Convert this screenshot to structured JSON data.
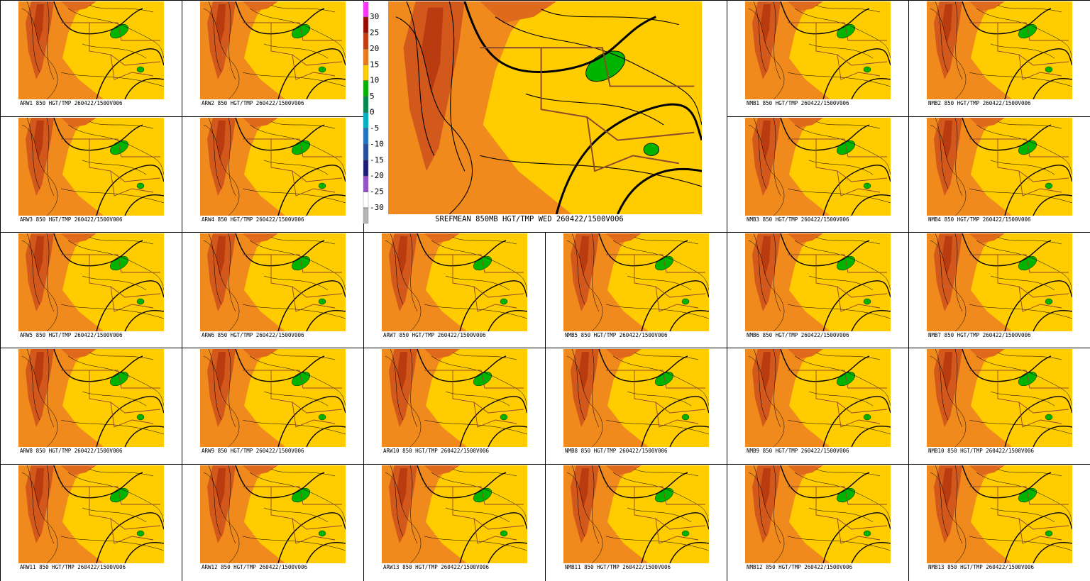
{
  "main_panel": {
    "title": "SREFMEAN 850MB HGT/TMP WED 260422/1500V006"
  },
  "colorbar": {
    "ticks": [
      30,
      25,
      20,
      15,
      10,
      5,
      0,
      -5,
      -10,
      -15,
      -20,
      -25,
      -30
    ],
    "colors": [
      "#ff33ff",
      "#9c0a00",
      "#c83c10",
      "#f07818",
      "#ffcc00",
      "#00b400",
      "#008c50",
      "#00b4c8",
      "#1e78c8",
      "#2850a0",
      "#1e1e78",
      "#9650c8",
      "#ffffff",
      "#b4b4b4"
    ]
  },
  "panels": [
    {
      "label": "ARW1 850 HGT/TMP 260422/1500V006"
    },
    {
      "label": "ARW2 850 HGT/TMP 260422/1500V006"
    },
    {
      "label": "NMB1 850 HGT/TMP 260422/1500V006"
    },
    {
      "label": "NMB2 850 HGT/TMP 260422/1500V006"
    },
    {
      "label": "ARW3 850 HGT/TMP 260422/1500V006"
    },
    {
      "label": "ARW4 850 HGT/TMP 260422/1500V006"
    },
    {
      "label": "NMB3 850 HGT/TMP 260422/1500V006"
    },
    {
      "label": "NMB4 850 HGT/TMP 260422/1500V006"
    },
    {
      "label": "ARW5 850 HGT/TMP 260422/1500V006"
    },
    {
      "label": "ARW6 850 HGT/TMP 260422/1500V006"
    },
    {
      "label": "ARW7 850 HGT/TMP 260422/1500V006"
    },
    {
      "label": "NMB5 850 HGT/TMP 260422/1500V006"
    },
    {
      "label": "NMB6 850 HGT/TMP 260422/1500V006"
    },
    {
      "label": "NMB7 850 HGT/TMP 260422/1500V006"
    },
    {
      "label": "ARW8 850 HGT/TMP 260422/1500V006"
    },
    {
      "label": "ARW9 850 HGT/TMP 260422/1500V006"
    },
    {
      "label": "ARW10 850 HGT/TMP 260422/1500V006"
    },
    {
      "label": "NMB8 850 HGT/TMP 260422/1500V006"
    },
    {
      "label": "NMB9 850 HGT/TMP 260422/1500V006"
    },
    {
      "label": "NMB10 850 HGT/TMP 260422/1500V006"
    },
    {
      "label": "ARW11 850 HGT/TMP 260422/1500V006"
    },
    {
      "label": "ARW12 850 HGT/TMP 260422/1500V006"
    },
    {
      "label": "ARW13 850 HGT/TMP 260422/1500V006"
    },
    {
      "label": "NMB11 850 HGT/TMP 260422/1500V006"
    },
    {
      "label": "NMB12 850 HGT/TMP 260422/1500V006"
    },
    {
      "label": "NMB13 850 HGT/TMP 260422/1500V006"
    }
  ]
}
